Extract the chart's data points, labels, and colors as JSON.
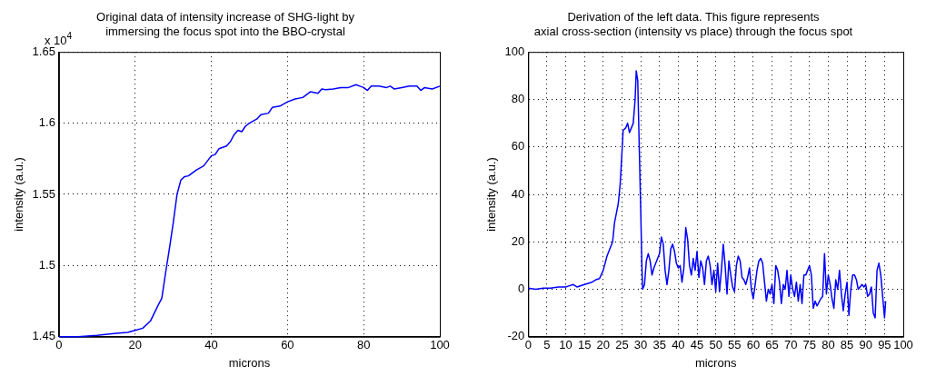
{
  "chart_data": [
    {
      "type": "line",
      "title": "Original data of intensity increase of SHG-light by\nimmersing the focus spot into the BBO-crystal",
      "xlabel": "microns",
      "ylabel": "intensity (a.u.)",
      "annotations": [
        "x 10$^{4}$"
      ],
      "grid": true,
      "legend": false,
      "marker": "none",
      "line_style": "solid",
      "x": [
        0,
        5,
        10,
        15,
        18,
        20,
        22,
        24,
        26,
        27,
        28,
        29,
        30,
        31,
        32,
        33,
        34,
        36,
        38,
        40,
        41,
        42,
        44,
        45,
        46,
        47,
        48,
        49,
        50,
        52,
        53,
        55,
        56,
        58,
        60,
        62,
        64,
        66,
        68,
        69,
        70,
        72,
        74,
        76,
        78,
        79,
        80,
        81,
        82,
        84,
        86,
        87,
        88,
        90,
        92,
        94,
        95,
        96,
        98,
        100
      ],
      "series": [
        {
          "color": "#0000ff",
          "values": [
            1.45,
            1.45,
            1.451,
            1.4525,
            1.453,
            1.4545,
            1.456,
            1.461,
            1.472,
            1.477,
            1.495,
            1.512,
            1.53,
            1.55,
            1.56,
            1.5625,
            1.563,
            1.567,
            1.57,
            1.577,
            1.578,
            1.582,
            1.584,
            1.587,
            1.592,
            1.595,
            1.594,
            1.598,
            1.6,
            1.603,
            1.606,
            1.607,
            1.611,
            1.612,
            1.615,
            1.617,
            1.618,
            1.622,
            1.621,
            1.624,
            1.6235,
            1.624,
            1.625,
            1.625,
            1.627,
            1.626,
            1.625,
            1.623,
            1.626,
            1.626,
            1.625,
            1.626,
            1.624,
            1.625,
            1.626,
            1.626,
            1.623,
            1.625,
            1.624,
            1.626
          ]
        }
      ],
      "xlim": [
        0,
        100
      ],
      "xticks": [
        0,
        20,
        40,
        60,
        80,
        100
      ],
      "ylim": [
        1.45,
        1.65
      ],
      "yticks": [
        1.45,
        1.5,
        1.55,
        1.6,
        1.65
      ]
    },
    {
      "type": "line",
      "title": "Derivation of the left data. This figure represents\naxial cross-section (intensity vs place) through the focus spot",
      "xlabel": "microns",
      "ylabel": "intensity (a.u.)",
      "grid": true,
      "legend": false,
      "marker": "none",
      "line_style": "solid",
      "x": [
        0,
        2,
        4,
        6,
        8,
        10,
        11,
        12,
        13,
        15,
        16,
        17,
        18,
        19,
        20,
        21,
        22,
        22.5,
        23,
        24,
        24.5,
        25,
        25.3,
        26,
        26.5,
        27,
        28,
        28.5,
        28.8,
        29.2,
        29.6,
        30,
        30.3,
        30.5,
        31,
        31.5,
        32,
        32.5,
        33,
        33.5,
        34,
        35,
        35.5,
        36,
        36.5,
        37,
        37.5,
        38,
        38.5,
        39,
        39.5,
        40,
        40.5,
        41,
        41.5,
        42,
        42.5,
        43,
        43.5,
        44,
        44.5,
        45,
        45.5,
        46,
        46.5,
        47,
        47.5,
        48,
        48.5,
        49,
        49.5,
        50,
        50.5,
        51,
        51.5,
        52,
        52.5,
        53,
        53.5,
        54,
        54.5,
        55,
        55.5,
        56,
        56.5,
        57,
        57.5,
        58,
        58.5,
        59,
        59.5,
        60,
        60.5,
        61,
        61.5,
        62,
        62.5,
        63,
        63.5,
        64,
        64.5,
        65,
        65.5,
        66,
        66.5,
        67,
        67.5,
        68,
        68.5,
        69,
        69.5,
        70,
        70.5,
        71,
        71.5,
        72,
        72.5,
        73,
        73.5,
        74,
        75,
        75.5,
        76,
        76.5,
        77,
        78,
        78.5,
        79,
        79.5,
        80,
        80.5,
        81,
        81.5,
        82,
        82.5,
        83,
        83.5,
        84,
        84.5,
        85,
        85.5,
        86,
        86.5,
        87,
        87.5,
        88,
        89,
        89.5,
        90,
        90.5,
        91,
        91.5,
        92,
        92.5,
        93,
        93.5,
        94,
        94.5,
        95,
        95.3
      ],
      "series": [
        {
          "color": "#0000ff",
          "values": [
            0.5,
            0,
            0.5,
            0.5,
            1,
            1,
            1.5,
            2,
            1,
            2,
            2.5,
            3,
            4,
            4.5,
            8,
            14,
            18,
            20,
            28,
            36,
            44,
            58,
            67,
            68,
            70,
            66,
            70,
            80,
            92,
            88,
            60,
            33,
            10,
            0,
            2,
            12,
            15,
            12,
            6,
            9,
            11,
            15,
            22,
            19,
            8,
            2,
            8,
            17,
            19,
            16,
            11,
            9,
            10,
            3,
            9,
            26,
            21,
            10,
            6,
            13,
            8,
            16,
            5,
            12,
            9,
            2,
            12,
            14,
            10,
            2,
            8,
            -1,
            11,
            -1,
            8,
            19,
            10,
            -2,
            12,
            6,
            1,
            -1,
            10,
            14,
            12,
            5,
            4,
            2,
            5,
            9,
            0,
            -4,
            2,
            8,
            12,
            13,
            11,
            3,
            -5,
            0,
            -2,
            2,
            -6,
            10,
            8,
            3,
            -6,
            2,
            0,
            8,
            -3,
            6,
            0,
            -3,
            3,
            -5,
            2,
            -6,
            6,
            6,
            10,
            6,
            -8,
            -5,
            -7,
            -4,
            -3,
            15,
            -2,
            6,
            2,
            -4,
            -8,
            4,
            0,
            8,
            -2,
            -9,
            -2,
            3,
            -11,
            0,
            6,
            6,
            4,
            0,
            2,
            1,
            2,
            -3,
            -2,
            1,
            -10,
            -12,
            8,
            11,
            6,
            -3,
            -12,
            -5
          ]
        }
      ],
      "xlim": [
        0,
        100
      ],
      "xticks": [
        0,
        5,
        10,
        15,
        20,
        25,
        30,
        35,
        40,
        45,
        50,
        55,
        60,
        65,
        70,
        75,
        80,
        85,
        90,
        95,
        100
      ],
      "ylim": [
        -20,
        100
      ],
      "yticks": [
        -20,
        0,
        20,
        40,
        60,
        80,
        100
      ]
    }
  ]
}
